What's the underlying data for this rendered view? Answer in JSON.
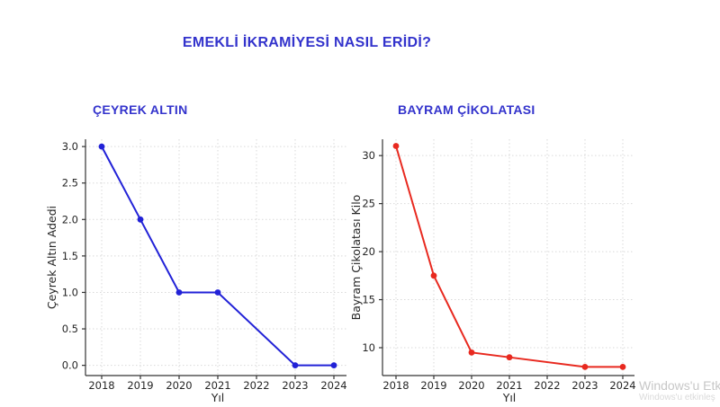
{
  "page": {
    "title": "EMEKLİ İKRAMİYESİ NASIL ERİDİ?",
    "title_color": "#3333cc",
    "background": "#ffffff"
  },
  "watermark": {
    "line1": "Windows'u Etk",
    "line2": "Windows'u etkinleş"
  },
  "style": {
    "axis_color": "#333333",
    "grid_color": "#d9d9d9",
    "tick_text_color": "#262626"
  },
  "chart_data": [
    {
      "type": "line",
      "title": "ÇEYREK ALTIN",
      "xlabel": "Yıl",
      "ylabel": "Çeyrek Altın Adedi",
      "color": "#2222d7",
      "x": [
        2018,
        2019,
        2020,
        2021,
        2023,
        2024
      ],
      "values": [
        3,
        2,
        1,
        1,
        0,
        0
      ],
      "xticks": [
        2018,
        2019,
        2020,
        2021,
        2022,
        2023,
        2024
      ],
      "yticks": [
        0.0,
        0.5,
        1.0,
        1.5,
        2.0,
        2.5,
        3.0
      ],
      "ytick_labels": [
        "0.0",
        "0.5",
        "1.0",
        "1.5",
        "2.0",
        "2.5",
        "3.0"
      ],
      "ylim": [
        -0.14,
        3.1
      ],
      "grid": true,
      "legend": "none"
    },
    {
      "type": "line",
      "title": "BAYRAM ÇİKOLATASI",
      "xlabel": "Yıl",
      "ylabel": "Bayram Çikolatası Kilo",
      "color": "#e8291f",
      "x": [
        2018,
        2019,
        2020,
        2021,
        2023,
        2024
      ],
      "values": [
        31,
        17.5,
        9.5,
        9,
        8,
        8
      ],
      "xticks": [
        2018,
        2019,
        2020,
        2021,
        2022,
        2023,
        2024
      ],
      "yticks": [
        10,
        15,
        20,
        25,
        30
      ],
      "ytick_labels": [
        "10",
        "15",
        "20",
        "25",
        "30"
      ],
      "ylim": [
        7.1,
        31.7
      ],
      "grid": true,
      "legend": "none"
    }
  ]
}
